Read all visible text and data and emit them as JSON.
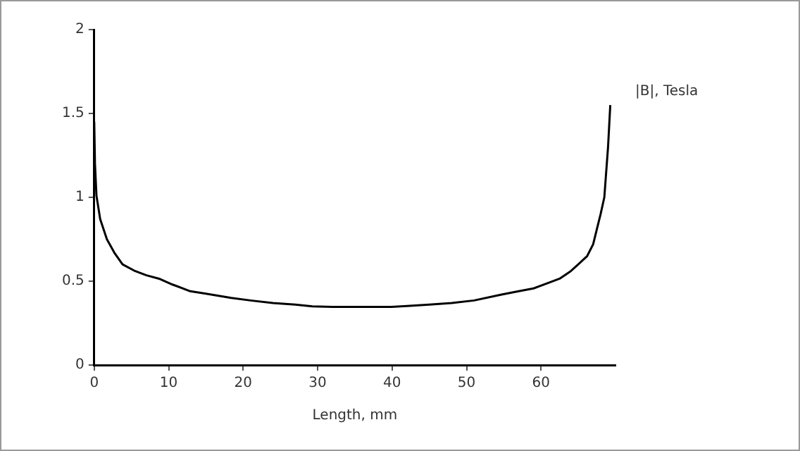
{
  "chart_data": {
    "type": "line",
    "xlabel": "Length, mm",
    "ylabel": "|B|, Tesla",
    "x": [
      0,
      0.1,
      0.3,
      0.8,
      1.7,
      2.7,
      3.8,
      5.5,
      7,
      8.7,
      10.5,
      12.9,
      15,
      18.4,
      21,
      24,
      27,
      29.3,
      32,
      35,
      37,
      39.9,
      42,
      45,
      48,
      51,
      54.7,
      57,
      59,
      61,
      62.5,
      64,
      65,
      66.2,
      67,
      67.5,
      68,
      68.5,
      69,
      69.3
    ],
    "series": [
      {
        "color": "#000000",
        "values": [
          1.45,
          1.2,
          1.01,
          0.87,
          0.75,
          0.67,
          0.6,
          0.56,
          0.535,
          0.515,
          0.48,
          0.44,
          0.425,
          0.4,
          0.385,
          0.37,
          0.36,
          0.35,
          0.347,
          0.347,
          0.347,
          0.347,
          0.352,
          0.36,
          0.37,
          0.385,
          0.42,
          0.44,
          0.457,
          0.49,
          0.515,
          0.56,
          0.6,
          0.65,
          0.72,
          0.81,
          0.9,
          1.0,
          1.3,
          1.55
        ]
      }
    ],
    "xlim": [
      0,
      70
    ],
    "xticks": [
      0,
      10,
      20,
      30,
      40,
      50,
      60
    ],
    "ylim": [
      0,
      2
    ],
    "yticks": [
      0,
      0.5,
      1,
      1.5,
      2
    ],
    "grid": false,
    "legend": false,
    "marker": "none",
    "line_style": "solid"
  }
}
